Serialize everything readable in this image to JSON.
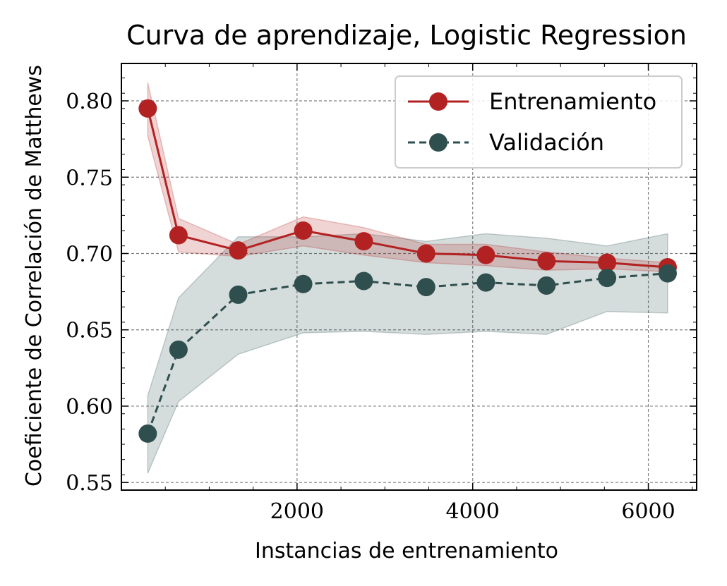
{
  "chart_data": {
    "type": "line",
    "title": "Curva de aprendizaje, Logistic Regression",
    "xlabel": "Instancias de entrenamiento",
    "ylabel": "Coeficiente de Correlación de Matthews",
    "xlim": [
      0,
      6550
    ],
    "ylim": [
      0.545,
      0.8245
    ],
    "xticks": [
      2000,
      4000,
      6000
    ],
    "xtick_labels": [
      "2000",
      "4000",
      "6000"
    ],
    "yticks": [
      0.55,
      0.6,
      0.65,
      0.7,
      0.75,
      0.8
    ],
    "ytick_labels": [
      "0.55",
      "0.60",
      "0.65",
      "0.70",
      "0.75",
      "0.80"
    ],
    "grid": true,
    "legend_position": "top-right",
    "x": [
      300,
      650,
      1330,
      2070,
      2760,
      3470,
      4150,
      4840,
      5530,
      6220
    ],
    "series": [
      {
        "name": "Entrenamiento",
        "color": "#b22222",
        "linestyle": "solid",
        "values": [
          0.795,
          0.712,
          0.702,
          0.715,
          0.708,
          0.7,
          0.699,
          0.695,
          0.694,
          0.691
        ],
        "band_upper": [
          0.812,
          0.723,
          0.706,
          0.724,
          0.717,
          0.706,
          0.706,
          0.701,
          0.697,
          0.694
        ],
        "band_lower": [
          0.777,
          0.701,
          0.698,
          0.705,
          0.699,
          0.694,
          0.692,
          0.689,
          0.69,
          0.688
        ]
      },
      {
        "name": "Validación",
        "color": "#2f4f4f",
        "linestyle": "dashed",
        "values": [
          0.582,
          0.637,
          0.673,
          0.68,
          0.682,
          0.678,
          0.681,
          0.679,
          0.684,
          0.687
        ],
        "band_upper": [
          0.607,
          0.671,
          0.711,
          0.711,
          0.713,
          0.708,
          0.713,
          0.71,
          0.705,
          0.713
        ],
        "band_lower": [
          0.556,
          0.603,
          0.634,
          0.648,
          0.649,
          0.647,
          0.649,
          0.647,
          0.662,
          0.661
        ]
      }
    ]
  }
}
